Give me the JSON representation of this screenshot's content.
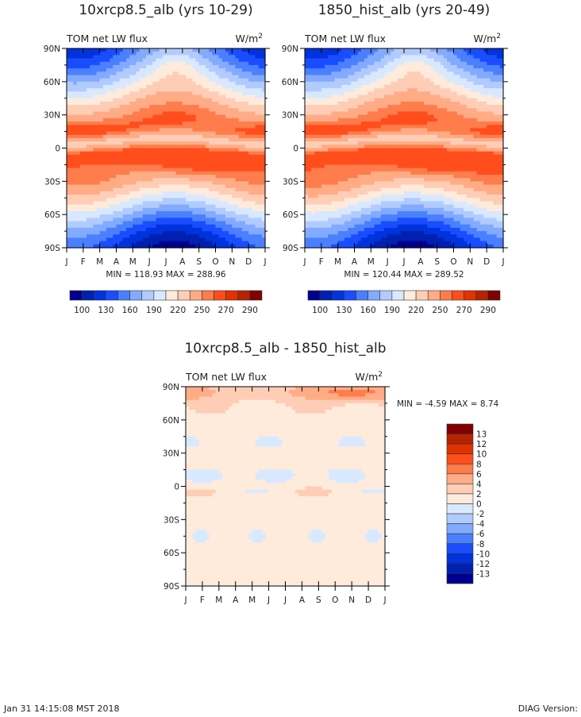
{
  "chart_data": [
    {
      "type": "heatmap",
      "title": "10xrcp8.5_alb (yrs 10-29)",
      "left_label": "TOM net LW flux",
      "units": "W/m",
      "units_sup": "2",
      "x_tick_labels": [
        "J",
        "F",
        "M",
        "A",
        "M",
        "J",
        "J",
        "A",
        "S",
        "O",
        "N",
        "D",
        "J"
      ],
      "y_tick_labels": [
        "90N",
        "60N",
        "30N",
        "0",
        "30S",
        "60S",
        "90S"
      ],
      "stats": "MIN = 118.93 MAX = 288.96",
      "min": 118.93,
      "max": 288.96,
      "colorbar_labels": [
        "100",
        "130",
        "160",
        "190",
        "220",
        "250",
        "270",
        "290"
      ],
      "colorbar_orientation": "horizontal"
    },
    {
      "type": "heatmap",
      "title": "1850_hist_alb (yrs 20-49)",
      "left_label": "TOM net LW flux",
      "units": "W/m",
      "units_sup": "2",
      "x_tick_labels": [
        "J",
        "F",
        "M",
        "A",
        "M",
        "J",
        "J",
        "A",
        "S",
        "O",
        "N",
        "D",
        "J"
      ],
      "y_tick_labels": [
        "90N",
        "60N",
        "30N",
        "0",
        "30S",
        "60S",
        "90S"
      ],
      "stats": "MIN = 120.44 MAX = 289.52",
      "min": 120.44,
      "max": 289.52,
      "colorbar_labels": [
        "100",
        "130",
        "160",
        "190",
        "220",
        "250",
        "270",
        "290"
      ],
      "colorbar_orientation": "horizontal"
    },
    {
      "type": "heatmap",
      "title": "10xrcp8.5_alb - 1850_hist_alb",
      "left_label": "TOM net LW flux",
      "units": "W/m",
      "units_sup": "2",
      "x_tick_labels": [
        "J",
        "F",
        "M",
        "A",
        "M",
        "J",
        "J",
        "A",
        "S",
        "O",
        "N",
        "D",
        "J"
      ],
      "y_tick_labels": [
        "90N",
        "60N",
        "30N",
        "0",
        "30S",
        "60S",
        "90S"
      ],
      "stats": "MIN =   -4.59 MAX =    8.74",
      "min": -4.59,
      "max": 8.74,
      "colorbar_labels": [
        "13",
        "12",
        "10",
        "8",
        "6",
        "4",
        "2",
        "0",
        "-2",
        "-4",
        "-6",
        "-8",
        "-10",
        "-12",
        "-13"
      ],
      "colorbar_orientation": "vertical"
    }
  ],
  "colors": [
    "#00008f",
    "#0020b0",
    "#0033dd",
    "#1a4dff",
    "#4a80ff",
    "#82aaff",
    "#b2cbff",
    "#d8e9ff",
    "#ffebdc",
    "#ffcdb6",
    "#ffac86",
    "#ff7c4c",
    "#ff4e1c",
    "#e23200",
    "#b52300",
    "#800000"
  ],
  "footer": {
    "timestamp": "Jan 31 14:15:08 MST 2018",
    "version": "DIAG Version:"
  }
}
